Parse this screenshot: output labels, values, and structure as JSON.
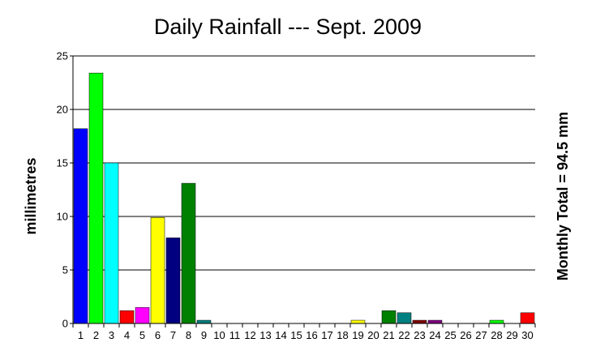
{
  "chart_data": {
    "type": "bar",
    "title": "Daily Rainfall --- Sept. 2009",
    "xlabel": "",
    "ylabel": "millimetres",
    "right_label": "Monthly Total = 94.5 mm",
    "ylim": [
      0,
      25
    ],
    "yticks": [
      "0",
      "5",
      "10",
      "15",
      "20",
      "25"
    ],
    "grid": true,
    "categories": [
      "1",
      "2",
      "3",
      "4",
      "5",
      "6",
      "7",
      "8",
      "9",
      "10",
      "11",
      "12",
      "13",
      "14",
      "15",
      "16",
      "17",
      "18",
      "19",
      "20",
      "21",
      "22",
      "23",
      "24",
      "25",
      "26",
      "27",
      "28",
      "29",
      "30"
    ],
    "values": [
      18.2,
      23.4,
      15.0,
      1.2,
      1.5,
      9.9,
      8.0,
      13.1,
      0.3,
      0,
      0,
      0,
      0,
      0,
      0,
      0,
      0,
      0,
      0.3,
      0,
      1.2,
      1.0,
      0.3,
      0.3,
      0,
      0,
      0,
      0.3,
      0,
      1.0
    ],
    "colors": [
      "#0000ff",
      "#00ff00",
      "#00ffff",
      "#ff0000",
      "#ff00ff",
      "#ffff00",
      "#000080",
      "#008000",
      "#008080",
      "#808080",
      "#808080",
      "#808080",
      "#808080",
      "#808080",
      "#808080",
      "#808080",
      "#808080",
      "#808080",
      "#ffff00",
      "#808080",
      "#008000",
      "#008080",
      "#800000",
      "#800080",
      "#808080",
      "#808080",
      "#808080",
      "#00ff00",
      "#808080",
      "#ff0000"
    ]
  }
}
